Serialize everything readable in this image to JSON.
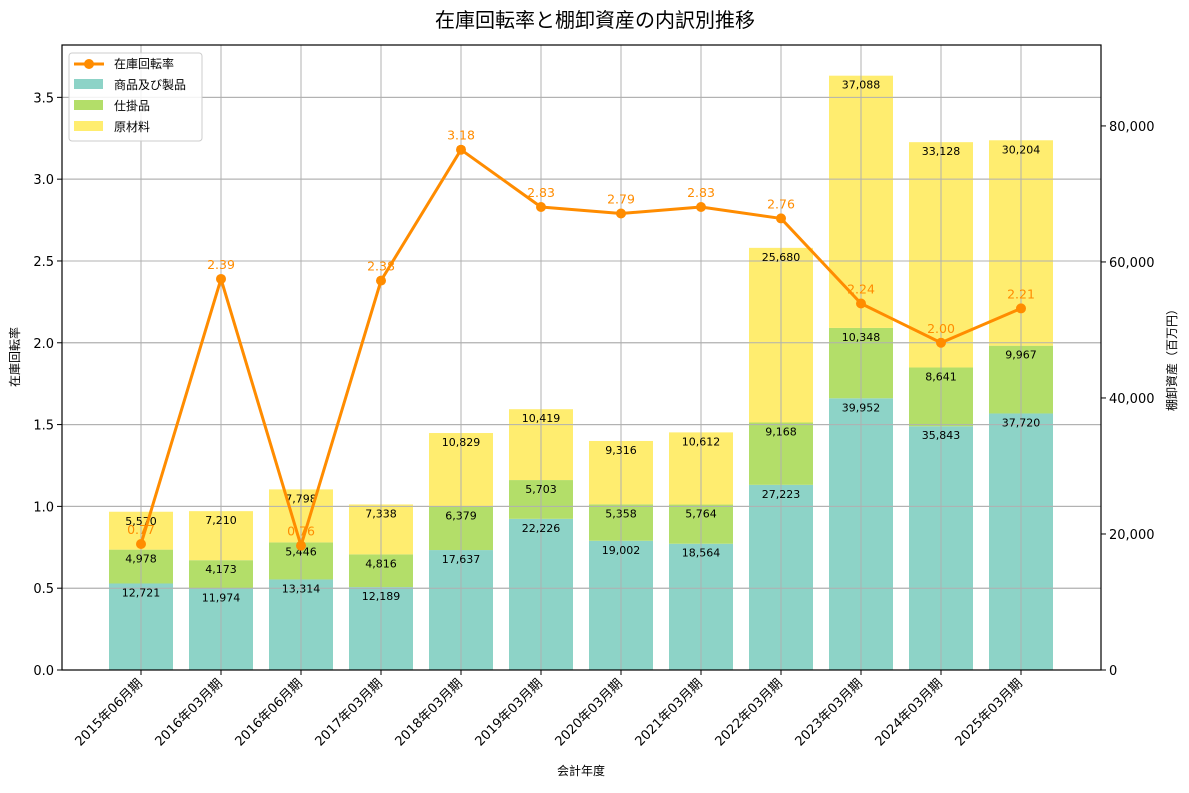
{
  "chart_data": {
    "type": "bar+line",
    "title": "在庫回転率と棚卸資産の内訳別推移",
    "xlabel": "会計年度",
    "ylabel_left": "在庫回転率",
    "ylabel_right": "棚卸資産（百万円）",
    "categories": [
      "2015年06月期",
      "2016年03月期",
      "2016年06月期",
      "2017年03月期",
      "2018年03月期",
      "2019年03月期",
      "2020年03月期",
      "2021年03月期",
      "2022年03月期",
      "2023年03月期",
      "2024年03月期",
      "2025年03月期"
    ],
    "bar_series": [
      {
        "name": "商品及び製品",
        "color": "#8dd3c7",
        "values": [
          12721,
          11974,
          13314,
          12189,
          17637,
          22226,
          19002,
          18564,
          27223,
          39952,
          35843,
          37720
        ]
      },
      {
        "name": "仕掛品",
        "color": "#b3de69",
        "values": [
          4978,
          4173,
          5446,
          4816,
          6379,
          5703,
          5358,
          5764,
          9168,
          10348,
          8641,
          9967
        ]
      },
      {
        "name": "原材料",
        "color": "#ffed6f",
        "values": [
          5570,
          7210,
          7798,
          7338,
          10829,
          10419,
          9316,
          10612,
          25680,
          37088,
          33128,
          30204
        ]
      }
    ],
    "line_series": {
      "name": "在庫回転率",
      "color": "#ff8c00",
      "values": [
        0.77,
        2.39,
        0.76,
        2.38,
        3.18,
        2.83,
        2.79,
        2.83,
        2.76,
        2.24,
        2.0,
        2.21
      ]
    },
    "y_left": {
      "ylim": [
        0,
        3.82
      ],
      "ticks": [
        0.0,
        0.5,
        1.0,
        1.5,
        2.0,
        2.5,
        3.0,
        3.5
      ],
      "tick_labels": [
        "0.0",
        "0.5",
        "1.0",
        "1.5",
        "2.0",
        "2.5",
        "3.0",
        "3.5"
      ]
    },
    "y_right": {
      "ylim": [
        0,
        91900
      ],
      "ticks": [
        0,
        20000,
        40000,
        60000,
        80000
      ],
      "tick_labels": [
        "0",
        "20,000",
        "40,000",
        "60,000",
        "80,000"
      ]
    },
    "grid": true,
    "legend_position": "upper left",
    "legend_entries": [
      "在庫回転率",
      "商品及び製品",
      "仕掛品",
      "原材料"
    ]
  }
}
